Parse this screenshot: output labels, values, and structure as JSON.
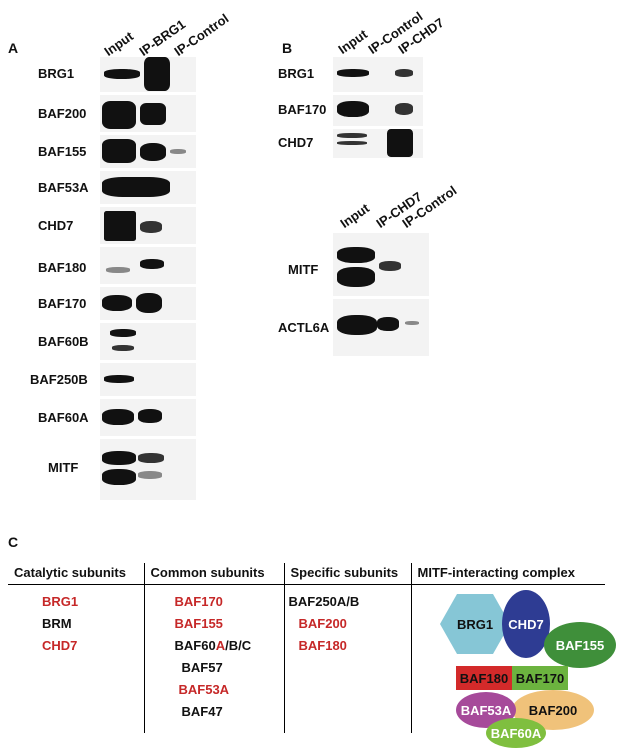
{
  "panel_a": {
    "label": "A",
    "columns": [
      "Input",
      "IP-BRG1",
      "IP-Control"
    ],
    "rows": [
      "BRG1",
      "BAF200",
      "BAF155",
      "BAF53A",
      "CHD7",
      "BAF180",
      "BAF170",
      "BAF60B",
      "BAF250B",
      "BAF60A",
      "MITF"
    ]
  },
  "panel_b": {
    "label": "B",
    "top_columns": [
      "Input",
      "IP-Control",
      "IP-CHD7"
    ],
    "top_rows": [
      "BRG1",
      "BAF170",
      "CHD7"
    ],
    "bottom_columns": [
      "Input",
      "IP-CHD7",
      "IP-Control"
    ],
    "bottom_rows": [
      "MITF",
      "ACTL6A"
    ]
  },
  "panel_c": {
    "label": "C",
    "headers": [
      "Catalytic subunits",
      "Common subunits",
      "Specific subunits",
      "MITF-interacting complex"
    ],
    "catalytic": [
      {
        "t": "BRG1",
        "c": "red"
      },
      {
        "t": "BRM",
        "c": "blk"
      },
      {
        "t": "CHD7",
        "c": "red"
      }
    ],
    "common": [
      {
        "t": "BAF170",
        "c": "red"
      },
      {
        "t": "BAF155",
        "c": "red"
      },
      {
        "t": "BAF60A/B/C",
        "c": "mixed"
      },
      {
        "t": "BAF57",
        "c": "blk"
      },
      {
        "t": "BAF53A",
        "c": "red"
      },
      {
        "t": "BAF47",
        "c": "blk"
      }
    ],
    "common_mixed": {
      "pre": "BAF60",
      "red": "A",
      "post": "/B/C"
    },
    "specific": [
      {
        "t": "BAF250A/B",
        "c": "blk"
      },
      {
        "t": "BAF200",
        "c": "red"
      },
      {
        "t": "BAF180",
        "c": "red"
      }
    ],
    "complex": {
      "brg1": "BRG1",
      "chd7": "CHD7",
      "baf155": "BAF155",
      "baf180": "BAF180",
      "baf170": "BAF170",
      "baf53a": "BAF53A",
      "baf200": "BAF200",
      "baf60a": "BAF60A"
    }
  },
  "colors": {
    "red": "#c62828",
    "brg1": "#86c6d6",
    "chd7": "#2e3c93",
    "baf155": "#3f8f3a",
    "baf180": "#d32a2a",
    "baf170": "#6cb33f",
    "baf53a": "#a64a9a",
    "baf200": "#f0c27a",
    "baf60a": "#7fbf3f"
  }
}
